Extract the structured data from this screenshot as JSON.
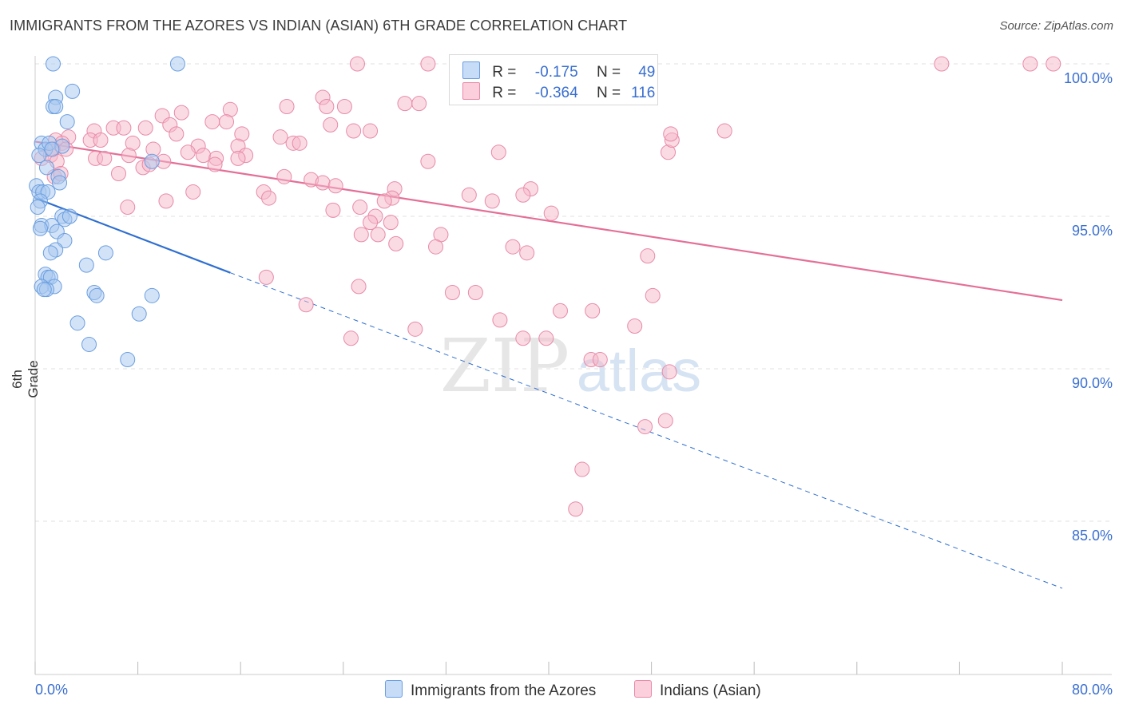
{
  "title": "IMMIGRANTS FROM THE AZORES VS INDIAN (ASIAN) 6TH GRADE CORRELATION CHART",
  "source": "Source: ZipAtlas.com",
  "watermark": {
    "zip": "ZIP",
    "atlas": "atlas"
  },
  "legend": {
    "rows": [
      {
        "r_label": "R =",
        "r_value": "-0.175",
        "n_label": "N =",
        "n_value": "49",
        "color": "#a8c8f0"
      },
      {
        "r_label": "R =",
        "r_value": "-0.364",
        "n_label": "N =",
        "n_value": "116",
        "color": "#f5b8ca"
      }
    ]
  },
  "bottom_legend": [
    {
      "label": "Immigrants from the Azores",
      "color": "#a8c8f0"
    },
    {
      "label": "Indians (Asian)",
      "color": "#f5b8ca"
    }
  ],
  "chart_data": {
    "type": "scatter",
    "title": "IMMIGRANTS FROM THE AZORES VS INDIAN (ASIAN) 6TH GRADE CORRELATION CHART",
    "xlabel": "",
    "ylabel": "6th Grade",
    "xlim": [
      0,
      80
    ],
    "ylim": [
      80.5,
      101.0
    ],
    "x_tick_labels": [
      "0.0%",
      "80.0%"
    ],
    "y_tick_labels": [
      "100.0%",
      "95.0%",
      "90.0%",
      "85.0%"
    ],
    "y_ticks": [
      100,
      95,
      90,
      85
    ],
    "grid": true,
    "series": [
      {
        "name": "Immigrants from the Azores",
        "color": "#a8c8f0",
        "stroke": "#6a9ee0",
        "trend": {
          "x": [
            0,
            15.2
          ],
          "y": [
            95.6,
            93.15
          ],
          "color": "#2f6fd0",
          "dashed_to": {
            "x": 80,
            "y": 82.8
          }
        },
        "points": [
          [
            1.4,
            100.0
          ],
          [
            11.1,
            100.0
          ],
          [
            2.9,
            99.1
          ],
          [
            1.6,
            98.9
          ],
          [
            1.4,
            98.6
          ],
          [
            1.6,
            98.6
          ],
          [
            2.5,
            98.1
          ],
          [
            0.5,
            97.4
          ],
          [
            0.8,
            97.2
          ],
          [
            1.1,
            97.4
          ],
          [
            2.1,
            97.3
          ],
          [
            1.3,
            97.2
          ],
          [
            0.3,
            97.0
          ],
          [
            9.1,
            96.8
          ],
          [
            0.9,
            96.6
          ],
          [
            1.8,
            96.3
          ],
          [
            1.9,
            96.1
          ],
          [
            0.1,
            96.0
          ],
          [
            0.3,
            95.8
          ],
          [
            0.6,
            95.8
          ],
          [
            1.0,
            95.8
          ],
          [
            0.4,
            95.5
          ],
          [
            0.2,
            95.3
          ],
          [
            2.1,
            95.0
          ],
          [
            2.3,
            94.9
          ],
          [
            2.7,
            95.0
          ],
          [
            0.5,
            94.7
          ],
          [
            1.3,
            94.7
          ],
          [
            0.4,
            94.6
          ],
          [
            1.7,
            94.5
          ],
          [
            2.3,
            94.2
          ],
          [
            1.6,
            93.9
          ],
          [
            1.2,
            93.8
          ],
          [
            5.5,
            93.8
          ],
          [
            4.0,
            93.4
          ],
          [
            0.8,
            93.1
          ],
          [
            1.0,
            93.0
          ],
          [
            1.2,
            93.0
          ],
          [
            1.5,
            92.7
          ],
          [
            0.5,
            92.7
          ],
          [
            0.9,
            92.6
          ],
          [
            4.6,
            92.5
          ],
          [
            4.8,
            92.4
          ],
          [
            9.1,
            92.4
          ],
          [
            8.1,
            91.8
          ],
          [
            3.3,
            91.5
          ],
          [
            4.2,
            90.8
          ],
          [
            7.2,
            90.3
          ],
          [
            0.7,
            92.6
          ]
        ]
      },
      {
        "name": "Indians (Asian)",
        "color": "#f5b8ca",
        "stroke": "#e88aa8",
        "trend": {
          "x": [
            0,
            80
          ],
          "y": [
            97.45,
            92.25
          ],
          "color": "#e46f98"
        },
        "points": [
          [
            25.1,
            100.0
          ],
          [
            30.6,
            100.0
          ],
          [
            47.7,
            100.0
          ],
          [
            70.6,
            100.0
          ],
          [
            77.5,
            100.0
          ],
          [
            79.3,
            100.0
          ],
          [
            22.4,
            98.9
          ],
          [
            28.8,
            98.7
          ],
          [
            29.9,
            98.7
          ],
          [
            19.6,
            98.6
          ],
          [
            22.7,
            98.6
          ],
          [
            24.1,
            98.6
          ],
          [
            15.2,
            98.5
          ],
          [
            11.4,
            98.4
          ],
          [
            9.9,
            98.3
          ],
          [
            13.8,
            98.1
          ],
          [
            14.9,
            98.1
          ],
          [
            23.0,
            98.0
          ],
          [
            10.5,
            98.0
          ],
          [
            8.6,
            97.9
          ],
          [
            4.6,
            97.8
          ],
          [
            6.1,
            97.9
          ],
          [
            6.9,
            97.9
          ],
          [
            26.1,
            97.8
          ],
          [
            24.8,
            97.8
          ],
          [
            11.0,
            97.7
          ],
          [
            16.1,
            97.7
          ],
          [
            19.1,
            97.6
          ],
          [
            2.6,
            97.6
          ],
          [
            4.3,
            97.5
          ],
          [
            1.6,
            97.5
          ],
          [
            5.1,
            97.5
          ],
          [
            2.1,
            97.4
          ],
          [
            7.6,
            97.4
          ],
          [
            12.7,
            97.3
          ],
          [
            15.8,
            97.3
          ],
          [
            20.1,
            97.4
          ],
          [
            20.6,
            97.4
          ],
          [
            1.4,
            97.2
          ],
          [
            2.4,
            97.2
          ],
          [
            9.2,
            97.2
          ],
          [
            11.9,
            97.1
          ],
          [
            16.4,
            97.0
          ],
          [
            13.1,
            97.0
          ],
          [
            14.1,
            96.9
          ],
          [
            36.1,
            97.1
          ],
          [
            49.3,
            97.1
          ],
          [
            49.6,
            97.5
          ],
          [
            49.5,
            97.7
          ],
          [
            53.7,
            97.8
          ],
          [
            30.6,
            96.8
          ],
          [
            0.5,
            96.9
          ],
          [
            1.2,
            97.0
          ],
          [
            1.7,
            96.8
          ],
          [
            4.7,
            96.9
          ],
          [
            5.4,
            96.9
          ],
          [
            7.3,
            97.0
          ],
          [
            8.4,
            96.6
          ],
          [
            8.9,
            96.7
          ],
          [
            10.0,
            96.8
          ],
          [
            14.0,
            96.7
          ],
          [
            15.8,
            96.9
          ],
          [
            6.5,
            96.4
          ],
          [
            1.5,
            96.3
          ],
          [
            2.0,
            96.4
          ],
          [
            19.4,
            96.3
          ],
          [
            21.5,
            96.2
          ],
          [
            22.4,
            96.1
          ],
          [
            23.4,
            96.0
          ],
          [
            28.0,
            95.9
          ],
          [
            38.6,
            95.9
          ],
          [
            38.0,
            95.7
          ],
          [
            33.8,
            95.7
          ],
          [
            35.6,
            95.5
          ],
          [
            27.8,
            95.6
          ],
          [
            27.2,
            95.5
          ],
          [
            12.3,
            95.8
          ],
          [
            17.8,
            95.8
          ],
          [
            18.2,
            95.6
          ],
          [
            25.3,
            95.3
          ],
          [
            23.2,
            95.2
          ],
          [
            7.2,
            95.3
          ],
          [
            10.2,
            95.5
          ],
          [
            26.5,
            95.0
          ],
          [
            40.2,
            95.1
          ],
          [
            27.7,
            94.8
          ],
          [
            26.1,
            94.8
          ],
          [
            26.7,
            94.4
          ],
          [
            25.4,
            94.4
          ],
          [
            31.6,
            94.4
          ],
          [
            28.1,
            94.1
          ],
          [
            31.2,
            94.0
          ],
          [
            37.2,
            94.0
          ],
          [
            38.3,
            93.8
          ],
          [
            47.7,
            93.7
          ],
          [
            18.0,
            93.0
          ],
          [
            25.2,
            92.7
          ],
          [
            32.5,
            92.5
          ],
          [
            34.3,
            92.5
          ],
          [
            21.1,
            92.1
          ],
          [
            40.9,
            91.9
          ],
          [
            43.4,
            91.9
          ],
          [
            36.2,
            91.6
          ],
          [
            29.6,
            91.3
          ],
          [
            46.7,
            91.4
          ],
          [
            48.1,
            92.4
          ],
          [
            38.0,
            91.0
          ],
          [
            39.8,
            91.0
          ],
          [
            24.6,
            91.0
          ],
          [
            43.3,
            90.3
          ],
          [
            44.0,
            90.3
          ],
          [
            49.4,
            89.9
          ],
          [
            49.1,
            88.3
          ],
          [
            47.5,
            88.1
          ],
          [
            42.6,
            86.7
          ],
          [
            42.1,
            85.4
          ]
        ]
      }
    ]
  }
}
